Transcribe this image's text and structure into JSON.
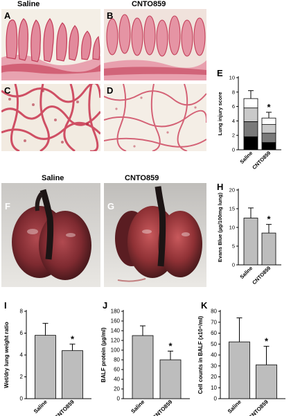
{
  "headers": {
    "saline": "Saline",
    "cnto": "CNTO859"
  },
  "photo_headers": {
    "saline": "Saline",
    "cnto": "CNTO859"
  },
  "panel_labels": {
    "A": "A",
    "B": "B",
    "C": "C",
    "D": "D",
    "E": "E",
    "F": "F",
    "G": "G",
    "H": "H",
    "I": "I",
    "J": "J",
    "K": "K"
  },
  "colors": {
    "bar": "#bdbdbd",
    "tissue_pink": "#e9a0ae",
    "tissue_dark": "#c8324f",
    "bg_pale": "#f3ece2",
    "heart_red": "#8a2a2c",
    "axis": "#000000"
  },
  "chart_data": [
    {
      "id": "E",
      "type": "bar",
      "stacked": true,
      "ylabel": "Lung injury score",
      "ylim": [
        0,
        10
      ],
      "yticks": [
        0,
        2,
        4,
        6,
        8,
        10
      ],
      "categories": [
        "Saline",
        "CNTO859"
      ],
      "series": [
        {
          "color": "#000000",
          "values": [
            1.8,
            1.0
          ]
        },
        {
          "color": "#7a7a7a",
          "values": [
            2.1,
            1.3
          ]
        },
        {
          "color": "#c9c9c9",
          "values": [
            1.9,
            1.2
          ]
        },
        {
          "color": "#ffffff",
          "values": [
            1.3,
            0.9
          ]
        }
      ],
      "errors": [
        1.1,
        0.8
      ],
      "significance": [
        "",
        "*"
      ]
    },
    {
      "id": "H",
      "type": "bar",
      "ylabel": "Evans Blue (µg/100mg lung)",
      "ylim": [
        0,
        20
      ],
      "yticks": [
        0,
        5,
        10,
        15,
        20
      ],
      "categories": [
        "Saline",
        "CNTO859"
      ],
      "values": [
        12.5,
        8.5
      ],
      "errors": [
        2.7,
        2.3
      ],
      "significance": [
        "",
        "*"
      ]
    },
    {
      "id": "I",
      "type": "bar",
      "ylabel": "Wet/dry lung weight ratio",
      "ylim": [
        0,
        8
      ],
      "yticks": [
        0,
        2,
        4,
        6,
        8
      ],
      "categories": [
        "Saline",
        "CNTO859"
      ],
      "values": [
        5.8,
        4.4
      ],
      "errors": [
        1.1,
        0.6
      ],
      "significance": [
        "",
        "*"
      ]
    },
    {
      "id": "J",
      "type": "bar",
      "ylabel": "BALF protein (µg/ml)",
      "ylim": [
        0,
        180
      ],
      "yticks": [
        0,
        20,
        40,
        60,
        80,
        100,
        120,
        140,
        160,
        180
      ],
      "categories": [
        "Saline",
        "CNTO859"
      ],
      "values": [
        130,
        80
      ],
      "errors": [
        20,
        18
      ],
      "significance": [
        "",
        "*"
      ]
    },
    {
      "id": "K",
      "type": "bar",
      "ylabel": "Cell counts in BALF (x10⁴/ml)",
      "ylim": [
        0,
        80
      ],
      "yticks": [
        0,
        10,
        20,
        30,
        40,
        50,
        60,
        70,
        80
      ],
      "categories": [
        "Saline",
        "CNTO859"
      ],
      "values": [
        52,
        31
      ],
      "errors": [
        22,
        17
      ],
      "significance": [
        "",
        "*"
      ]
    }
  ]
}
